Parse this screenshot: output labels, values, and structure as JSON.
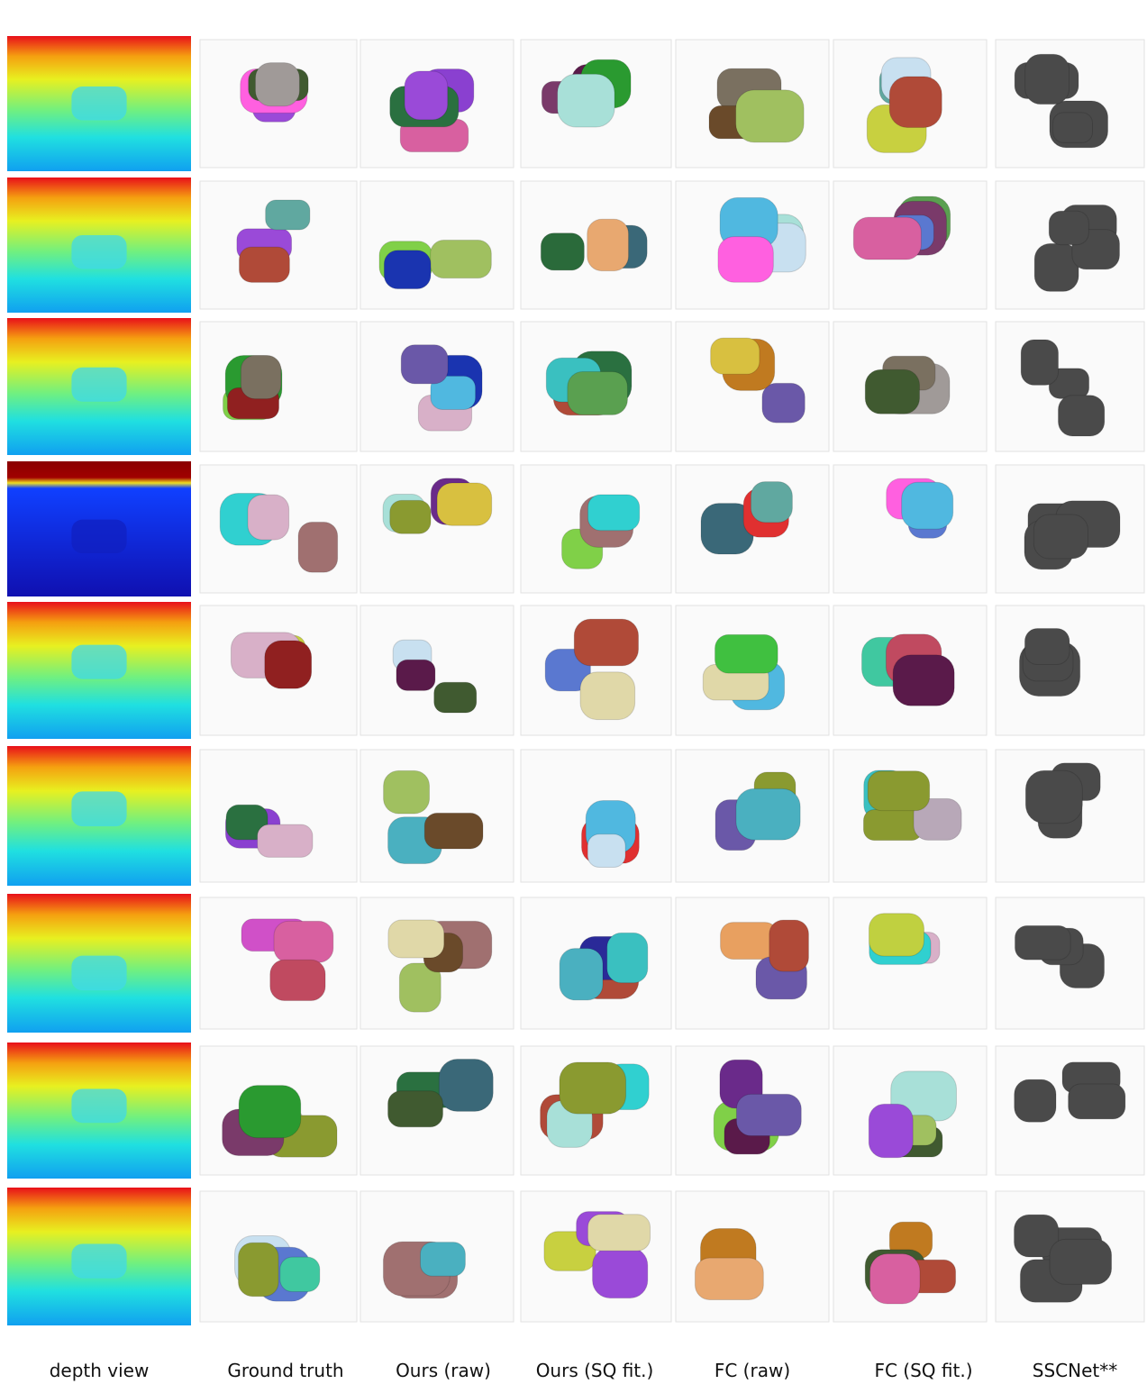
{
  "columns": [
    "depth view",
    "Ground truth",
    "Ours (raw)",
    "Ours (SQ fit.)",
    "FC (raw)",
    "FC  (SQ fit.)",
    "SSCNet**"
  ]
}
